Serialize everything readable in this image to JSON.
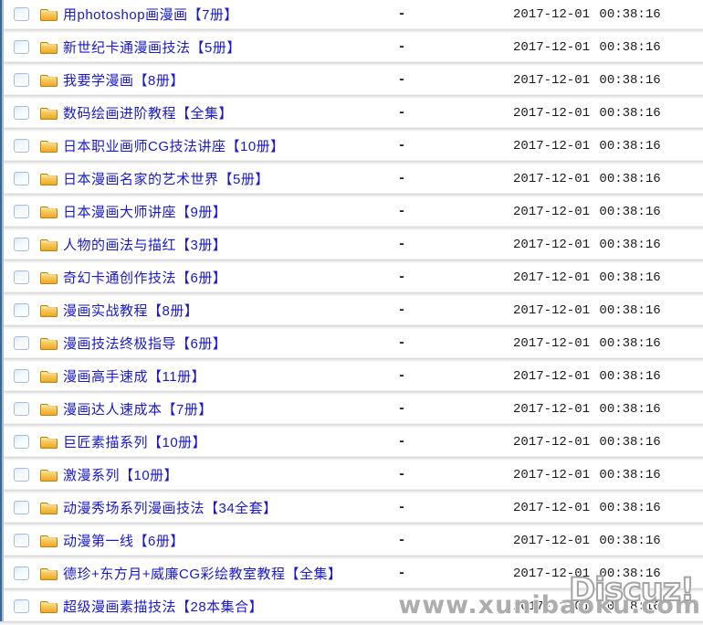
{
  "list": {
    "rows": [
      {
        "name": "用photoshop画漫画【7册】",
        "size": "-",
        "modified": "2017-12-01 00:38:16"
      },
      {
        "name": "新世纪卡通漫画技法【5册】",
        "size": "-",
        "modified": "2017-12-01 00:38:16"
      },
      {
        "name": "我要学漫画【8册】",
        "size": "-",
        "modified": "2017-12-01 00:38:16"
      },
      {
        "name": "数码绘画进阶教程【全集】",
        "size": "-",
        "modified": "2017-12-01 00:38:16"
      },
      {
        "name": "日本职业画师CG技法讲座【10册】",
        "size": "-",
        "modified": "2017-12-01 00:38:16"
      },
      {
        "name": "日本漫画名家的艺术世界【5册】",
        "size": "-",
        "modified": "2017-12-01 00:38:16"
      },
      {
        "name": "日本漫画大师讲座【9册】",
        "size": "-",
        "modified": "2017-12-01 00:38:16"
      },
      {
        "name": "人物的画法与描红【3册】",
        "size": "-",
        "modified": "2017-12-01 00:38:16"
      },
      {
        "name": "奇幻卡通创作技法【6册】",
        "size": "-",
        "modified": "2017-12-01 00:38:16"
      },
      {
        "name": "漫画实战教程【8册】",
        "size": "-",
        "modified": "2017-12-01 00:38:16"
      },
      {
        "name": "漫画技法终极指导【6册】",
        "size": "-",
        "modified": "2017-12-01 00:38:16"
      },
      {
        "name": "漫画高手速成【11册】",
        "size": "-",
        "modified": "2017-12-01 00:38:16"
      },
      {
        "name": "漫画达人速成本【7册】",
        "size": "-",
        "modified": "2017-12-01 00:38:16"
      },
      {
        "name": "巨匠素描系列【10册】",
        "size": "-",
        "modified": "2017-12-01 00:38:16"
      },
      {
        "name": "激漫系列【10册】",
        "size": "-",
        "modified": "2017-12-01 00:38:16"
      },
      {
        "name": "动漫秀场系列漫画技法【34全套】",
        "size": "-",
        "modified": "2017-12-01 00:38:16"
      },
      {
        "name": "动漫第一线【6册】",
        "size": "-",
        "modified": "2017-12-01 00:38:16"
      },
      {
        "name": "德珍+东方月+威廉CG彩绘教室教程【全集】",
        "size": "-",
        "modified": "2017-12-01 00:38:16"
      },
      {
        "name": "超级漫画素描技法【28本集合】",
        "size": "-",
        "modified": "2017-12-01 00:38:16"
      }
    ]
  },
  "icons": {
    "folder": "folder-icon",
    "checkbox": "row-checkbox"
  },
  "colors": {
    "link_blue": "#1818ce",
    "folder_orange": "#f3b13c",
    "folder_border": "#c2820a",
    "checkbox_border": "#a2c0dc",
    "panel_border_blue": "#336895",
    "watermark_gray": "#adadad"
  },
  "watermark": {
    "brand": "Discuz!",
    "site": "www.xunibaoku.com"
  }
}
